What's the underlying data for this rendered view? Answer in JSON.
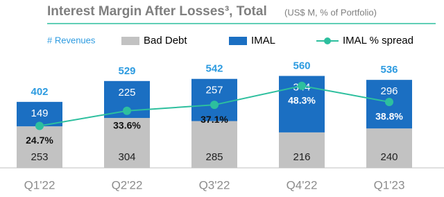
{
  "chart_data": {
    "type": "stacked-bar-line",
    "title": "Interest Margin After Losses³, Total",
    "subtitle": "(US$ M, % of Portfolio)",
    "categories": [
      "Q1'22",
      "Q2'22",
      "Q3'22",
      "Q4'22",
      "Q1'23"
    ],
    "series": [
      {
        "name": "Bad Debt",
        "color": "#c2c2c2",
        "values": [
          253,
          304,
          285,
          216,
          240
        ]
      },
      {
        "name": "IMAL",
        "color": "#1b6fc2",
        "values": [
          149,
          225,
          257,
          344,
          296
        ]
      },
      {
        "name": "IMAL % spread",
        "color": "#2dbf9e",
        "axis": "y2",
        "values": [
          24.7,
          33.6,
          37.1,
          48.3,
          38.8
        ],
        "value_labels": [
          "24.7%",
          "33.6%",
          "37.1%",
          "48.3%",
          "38.8%"
        ]
      }
    ],
    "totals": {
      "name": "# Revenues",
      "color": "#2d9be0",
      "values": [
        402,
        529,
        542,
        560,
        536
      ]
    },
    "ylim": [
      0,
      600
    ],
    "y2lim": [
      0,
      58
    ]
  }
}
